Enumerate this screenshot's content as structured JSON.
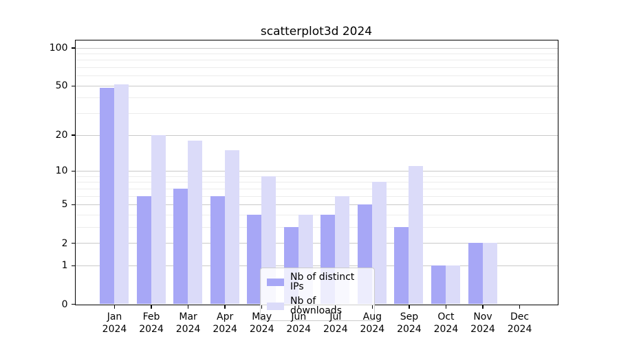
{
  "chart_data": {
    "type": "bar",
    "title": "scatterplot3d 2024",
    "categories": [
      "Jan 2024",
      "Feb 2024",
      "Mar 2024",
      "Apr 2024",
      "May 2024",
      "Jun 2024",
      "Jul 2024",
      "Aug 2024",
      "Sep 2024",
      "Oct 2024",
      "Nov 2024",
      "Dec 2024"
    ],
    "series": [
      {
        "name": "Nb of distinct IPs",
        "color": "#a7a7f6",
        "values": [
          48,
          6,
          7,
          6,
          4,
          3,
          4,
          5,
          3,
          1,
          2,
          0
        ]
      },
      {
        "name": "Nb of downloads",
        "color": "#dbdbf9",
        "values": [
          51,
          20,
          18,
          15,
          9,
          4,
          6,
          8,
          11,
          1,
          2,
          0
        ]
      }
    ],
    "y_axis": {
      "scale": "log1p",
      "major_ticks": [
        0,
        1,
        2,
        5,
        10,
        20,
        50,
        100
      ],
      "minor_ticks": [
        3,
        4,
        6,
        7,
        8,
        9,
        30,
        40,
        60,
        70,
        80,
        90
      ],
      "max": 114
    },
    "x_axis": {
      "tick_count": 12
    },
    "legend": {
      "position": "lower center"
    },
    "grid": true
  }
}
